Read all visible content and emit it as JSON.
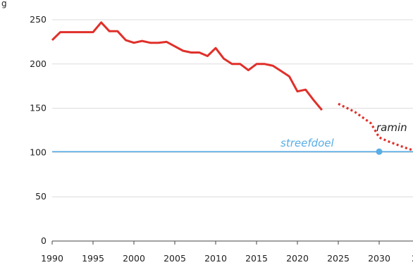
{
  "chart_data": {
    "type": "line",
    "title_fragment": "g",
    "x_ticks": [
      1990,
      1995,
      2000,
      2005,
      2010,
      2015,
      2020,
      2025,
      2030,
      "203"
    ],
    "y_ticks": [
      0,
      50,
      100,
      150,
      200,
      250
    ],
    "xlim": [
      1990,
      2035
    ],
    "ylim": [
      0,
      250
    ],
    "grid": "horizontal",
    "series": [
      {
        "id": "historical",
        "style": "solid",
        "color": "#e0302a",
        "x": [
          1990,
          1991,
          1992,
          1993,
          1994,
          1995,
          1996,
          1997,
          1998,
          1999,
          2000,
          2001,
          2002,
          2003,
          2004,
          2005,
          2006,
          2007,
          2008,
          2009,
          2010,
          2011,
          2012,
          2013,
          2014,
          2015,
          2016,
          2017,
          2018,
          2019,
          2020,
          2021,
          2022,
          2023
        ],
        "y": [
          227,
          236,
          236,
          236,
          236,
          236,
          247,
          237,
          237,
          227,
          224,
          226,
          224,
          224,
          225,
          220,
          215,
          213,
          213,
          209,
          218,
          206,
          200,
          200,
          193,
          200,
          200,
          198,
          192,
          186,
          169,
          171,
          159,
          148
        ]
      },
      {
        "id": "projection",
        "label": "ramin",
        "style": "dotted",
        "color": "#e0302a",
        "x": [
          2025,
          2027,
          2029,
          2030,
          2031,
          2033,
          2035
        ],
        "y": [
          155,
          146,
          133,
          117,
          113,
          106,
          100
        ]
      }
    ],
    "target": {
      "label": "streefdoel",
      "value": 101,
      "color": "#5aaee6",
      "point": {
        "x": 2030,
        "y": 101
      }
    }
  }
}
